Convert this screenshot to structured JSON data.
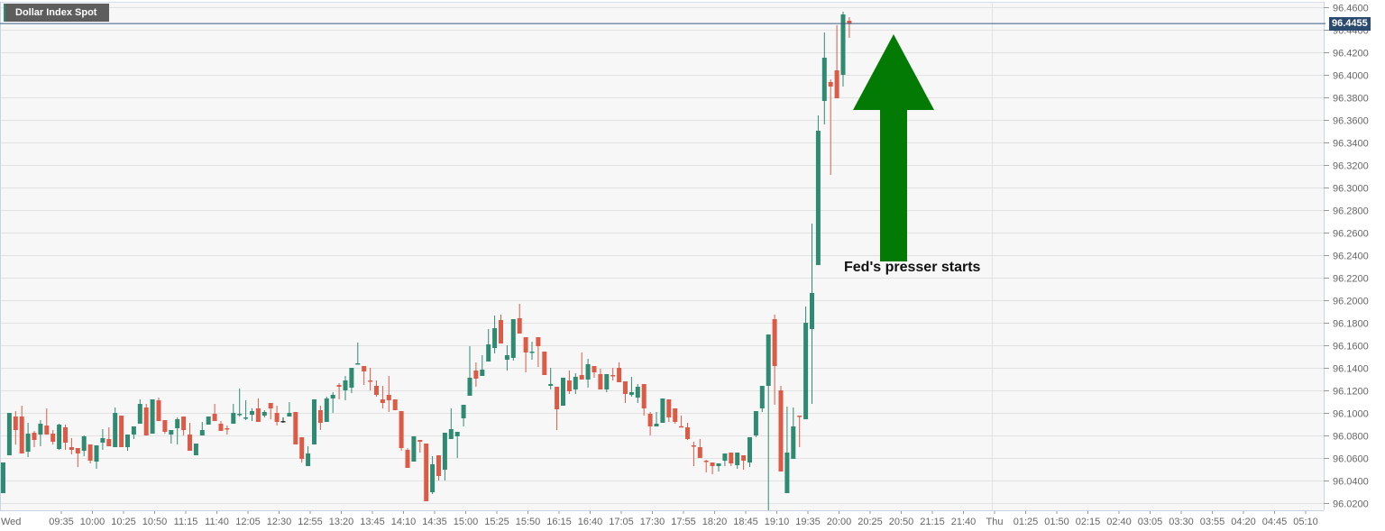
{
  "title": "Dollar Index Spot",
  "annotation": "Fed's presser starts",
  "last_price_label": "96.4455",
  "colors": {
    "up": "#2f8a72",
    "down": "#dc5a46",
    "arrow": "#037a03",
    "last_line": "#3b5b82",
    "last_box": "#2b4a6f"
  },
  "chart_data": {
    "type": "candlestick",
    "title": "Dollar Index Spot",
    "interval_minutes": 5,
    "ylim": [
      96.01,
      96.47
    ],
    "y_ticks": [
      96.46,
      96.44,
      96.42,
      96.4,
      96.38,
      96.36,
      96.34,
      96.32,
      96.3,
      96.28,
      96.26,
      96.24,
      96.22,
      96.2,
      96.18,
      96.16,
      96.14,
      96.12,
      96.1,
      96.08,
      96.06,
      96.04,
      96.02
    ],
    "y_tick_labels": [
      "96.4600",
      "96.4400",
      "96.4200",
      "96.4000",
      "96.3800",
      "96.3600",
      "96.3400",
      "96.3200",
      "96.3000",
      "96.2800",
      "96.2600",
      "96.2400",
      "96.2200",
      "96.2000",
      "96.1800",
      "96.1600",
      "96.1400",
      "96.1200",
      "96.1000",
      "96.0800",
      "96.0600",
      "96.0400",
      "96.0200"
    ],
    "x_tick_labels": [
      "09:35",
      "10:00",
      "10:25",
      "10:50",
      "11:15",
      "11:40",
      "12:05",
      "12:30",
      "12:55",
      "13:20",
      "13:45",
      "14:10",
      "14:35",
      "15:00",
      "15:25",
      "15:50",
      "16:15",
      "16:40",
      "17:05",
      "17:30",
      "17:55",
      "18:20",
      "18:45",
      "19:10",
      "19:35",
      "20:00",
      "20:25",
      "20:50",
      "21:15",
      "21:40",
      "Thu",
      "01:25",
      "01:50",
      "02:15",
      "02:40",
      "03:05",
      "03:30",
      "03:55",
      "04:20",
      "04:45",
      "05:10"
    ],
    "x_start_label": "Wed",
    "last_price": 96.4455,
    "grid": true,
    "ohlc": [
      [
        96.0288,
        96.056,
        96.0288,
        96.056
      ],
      [
        96.0624,
        96.1,
        96.0624,
        96.1
      ],
      [
        96.0968,
        96.1016,
        96.072,
        96.0848
      ],
      [
        96.0968,
        96.1064,
        96.064,
        96.064
      ],
      [
        96.0656,
        96.0912,
        96.0608,
        96.0816
      ],
      [
        96.0824,
        96.084,
        96.0696,
        96.076
      ],
      [
        96.0808,
        96.0936,
        96.0704,
        96.0904
      ],
      [
        96.0888,
        96.104,
        96.0808,
        96.0808
      ],
      [
        96.0816,
        96.0848,
        96.072,
        96.0744
      ],
      [
        96.068,
        96.0904,
        96.0672,
        96.0896
      ],
      [
        96.0872,
        96.0896,
        96.0672,
        96.0736
      ],
      [
        96.0696,
        96.0776,
        96.0632,
        96.0672
      ],
      [
        96.0688,
        96.0688,
        96.052,
        96.064
      ],
      [
        96.0664,
        96.08,
        96.0616,
        96.0792
      ],
      [
        96.072,
        96.072,
        96.0552,
        96.0576
      ],
      [
        96.0568,
        96.0712,
        96.0504,
        96.0712
      ],
      [
        96.0736,
        96.0856,
        96.0672,
        96.0776
      ],
      [
        96.0768,
        96.0872,
        96.0704,
        96.0704
      ],
      [
        96.0696,
        96.1048,
        96.0696,
        96.1
      ],
      [
        96.0976,
        96.0976,
        96.0696,
        96.0696
      ],
      [
        96.0696,
        96.0808,
        96.0664,
        96.0808
      ],
      [
        96.0808,
        96.088,
        96.0768,
        96.088
      ],
      [
        96.0904,
        96.112,
        96.0904,
        96.108
      ],
      [
        96.1048,
        96.108,
        96.08,
        96.08
      ],
      [
        96.0816,
        96.112,
        96.0816,
        96.112
      ],
      [
        96.1112,
        96.1136,
        96.0928,
        96.0928
      ],
      [
        96.0936,
        96.0936,
        96.0816,
        96.0832
      ],
      [
        96.0808,
        96.0848,
        96.0728,
        96.0848
      ],
      [
        96.0864,
        96.096,
        96.072,
        96.0944
      ],
      [
        96.0968,
        96.0968,
        96.08,
        96.0848
      ],
      [
        96.0808,
        96.0912,
        96.0664,
        96.0664
      ],
      [
        96.0624,
        96.0728,
        96.0624,
        96.0728
      ],
      [
        96.08,
        96.092,
        96.08,
        96.0848
      ],
      [
        96.0896,
        96.0968,
        96.0896,
        96.0968
      ],
      [
        96.0992,
        96.108,
        96.0928,
        96.0928
      ],
      [
        96.0904,
        96.0928,
        96.084,
        96.084
      ],
      [
        96.0864,
        96.0888,
        96.0808,
        96.086
      ],
      [
        96.0904,
        96.108,
        96.0904,
        96.1
      ],
      [
        96.099,
        96.1216,
        96.0968,
        96.0992
      ],
      [
        96.0958,
        96.1112,
        96.0936,
        96.096
      ],
      [
        96.0984,
        96.104,
        96.0928,
        96.1016
      ],
      [
        96.104,
        96.1128,
        96.092,
        96.092
      ],
      [
        96.0976,
        96.1024,
        96.096,
        96.1008
      ],
      [
        96.1088,
        96.1088,
        96.0944,
        96.104
      ],
      [
        96.1,
        96.1064,
        96.0888,
        96.092
      ],
      [
        96.0928,
        96.096,
        96.0912,
        96.0928
      ],
      [
        96.0968,
        96.1096,
        96.0968,
        96.1
      ],
      [
        96.1008,
        96.1008,
        96.072,
        96.072
      ],
      [
        96.0784,
        96.0784,
        96.056,
        96.0592
      ],
      [
        96.0528,
        96.0704,
        96.0528,
        96.064
      ],
      [
        96.072,
        96.112,
        96.072,
        96.112
      ],
      [
        96.1024,
        96.1064,
        96.0848,
        96.0912
      ],
      [
        96.092,
        96.1144,
        96.092,
        96.1128
      ],
      [
        96.1128,
        96.1184,
        96.1,
        96.116
      ],
      [
        96.1248,
        96.1264,
        96.112,
        96.1232
      ],
      [
        96.12,
        96.1328,
        96.1112,
        96.1288
      ],
      [
        96.1224,
        96.14,
        96.1176,
        96.14
      ],
      [
        96.1438,
        96.1624,
        96.144,
        96.144
      ],
      [
        96.1416,
        96.1416,
        96.1248,
        96.1368
      ],
      [
        96.1288,
        96.14,
        96.12,
        96.128
      ],
      [
        96.124,
        96.1288,
        96.1144,
        96.116
      ],
      [
        96.112,
        96.124,
        96.104,
        96.1088
      ],
      [
        96.116,
        96.1328,
        96.1008,
        96.1112
      ],
      [
        96.112,
        96.112,
        96.1024,
        96.1024
      ],
      [
        96.1016,
        96.1016,
        96.0664,
        96.0688
      ],
      [
        96.0672,
        96.0688,
        96.0512,
        96.0512
      ],
      [
        96.0568,
        96.0792,
        96.0568,
        96.0792
      ],
      [
        96.076,
        96.076,
        96.0648,
        96.0744
      ],
      [
        96.0728,
        96.0728,
        96.0216,
        96.0216
      ],
      [
        96.0296,
        96.0616,
        96.028,
        96.0544
      ],
      [
        96.0624,
        96.0624,
        96.04,
        96.044
      ],
      [
        96.0496,
        96.0824,
        96.04,
        96.0824
      ],
      [
        96.0768,
        96.104,
        96.0768,
        96.0856
      ],
      [
        96.0792,
        96.0832,
        96.06,
        96.0832
      ],
      [
        96.0952,
        96.1072,
        96.088,
        96.1072
      ],
      [
        96.1152,
        96.1592,
        96.1152,
        96.1312
      ],
      [
        96.1376,
        96.1448,
        96.1232,
        96.1304
      ],
      [
        96.1328,
        96.1512,
        96.1328,
        96.1384
      ],
      [
        96.1456,
        96.1744,
        96.1456,
        96.1608
      ],
      [
        96.1576,
        96.1864,
        96.1528,
        96.1752
      ],
      [
        96.1824,
        96.1872,
        96.1616,
        96.1616
      ],
      [
        96.1472,
        96.16,
        96.1376,
        96.1512
      ],
      [
        96.1488,
        96.1832,
        96.1464,
        96.1832
      ],
      [
        96.184,
        96.1968,
        96.1704,
        96.1704
      ],
      [
        96.1672,
        96.1672,
        96.136,
        96.1536
      ],
      [
        96.1542,
        96.1632,
        96.1472,
        96.1544
      ],
      [
        96.1672,
        96.1672,
        96.1408,
        96.1592
      ],
      [
        96.1544,
        96.1544,
        96.1336,
        96.1336
      ],
      [
        96.124,
        96.14,
        96.1208,
        96.1256
      ],
      [
        96.1232,
        96.1232,
        96.0848,
        96.1032
      ],
      [
        96.1064,
        96.1312,
        96.1064,
        96.1312
      ],
      [
        96.1288,
        96.1376,
        96.1168,
        96.1192
      ],
      [
        96.1208,
        96.1352,
        96.1168,
        96.132
      ],
      [
        96.1336,
        96.1536,
        96.1296,
        96.1296
      ],
      [
        96.1296,
        96.148,
        96.1224,
        96.1432
      ],
      [
        96.1416,
        96.1416,
        96.1312,
        96.136
      ],
      [
        96.1344,
        96.1392,
        96.1208,
        96.1208
      ],
      [
        96.1208,
        96.1344,
        96.1184,
        96.1344
      ],
      [
        96.1336,
        96.14,
        96.1288,
        96.133
      ],
      [
        96.14,
        96.1448,
        96.1272,
        96.1272
      ],
      [
        96.128,
        96.128,
        96.1088,
        96.1168
      ],
      [
        96.116,
        96.132,
        96.1144,
        96.1184
      ],
      [
        96.1136,
        96.1256,
        96.1088,
        96.1232
      ],
      [
        96.1256,
        96.1256,
        96.0976,
        96.104
      ],
      [
        96.0992,
        96.1008,
        96.08,
        96.088
      ],
      [
        96.088,
        96.1008,
        96.088,
        96.0904
      ],
      [
        96.0912,
        96.1128,
        96.0912,
        96.1128
      ],
      [
        96.112,
        96.112,
        96.092,
        96.096
      ],
      [
        96.104,
        96.104,
        96.0904,
        96.092
      ],
      [
        96.0882,
        96.0976,
        96.088,
        96.088
      ],
      [
        96.0872,
        96.0912,
        96.076,
        96.0768
      ],
      [
        96.0712,
        96.0744,
        96.0528,
        96.0704
      ],
      [
        96.0696,
        96.0768,
        96.06,
        96.06
      ],
      [
        96.0576,
        96.0584,
        96.0472,
        96.0568
      ],
      [
        96.056,
        96.056,
        96.0456,
        96.0528
      ],
      [
        96.0528,
        96.0552,
        96.048,
        96.0552
      ],
      [
        96.0576,
        96.064,
        96.0528,
        96.064
      ],
      [
        96.0648,
        96.0648,
        96.0528,
        96.0552
      ],
      [
        96.0536,
        96.0648,
        96.0504,
        96.0648
      ],
      [
        96.0624,
        96.0624,
        96.0496,
        96.0576
      ],
      [
        96.056,
        96.0784,
        96.052,
        96.0784
      ],
      [
        96.08,
        96.1016,
        96.0784,
        96.1016
      ],
      [
        96.104,
        96.124,
        96.1008,
        96.124
      ],
      [
        96.124,
        96.1696,
        96.0128,
        96.1696
      ],
      [
        96.1832,
        96.1872,
        96.1072,
        96.1416
      ],
      [
        96.12,
        96.124,
        96.048,
        96.048
      ],
      [
        96.0288,
        96.1056,
        96.0288,
        96.0648
      ],
      [
        96.0592,
        96.1048,
        96.0592,
        96.088
      ],
      [
        96.0976,
        96.0976,
        96.0696,
        96.0968
      ],
      [
        96.0944,
        96.1944,
        96.0944,
        96.18
      ],
      [
        96.1744,
        96.268,
        96.108,
        96.2064
      ],
      [
        96.2312,
        96.364,
        96.2312,
        96.3504
      ],
      [
        96.3768,
        96.4376,
        96.356,
        96.4152
      ],
      [
        96.3936,
        96.396,
        96.3112,
        96.3896
      ],
      [
        96.404,
        96.444,
        96.3792,
        96.3792
      ],
      [
        96.4,
        96.456,
        96.3896,
        96.4536
      ],
      [
        96.448,
        96.4512,
        96.4328,
        96.4455
      ]
    ]
  }
}
